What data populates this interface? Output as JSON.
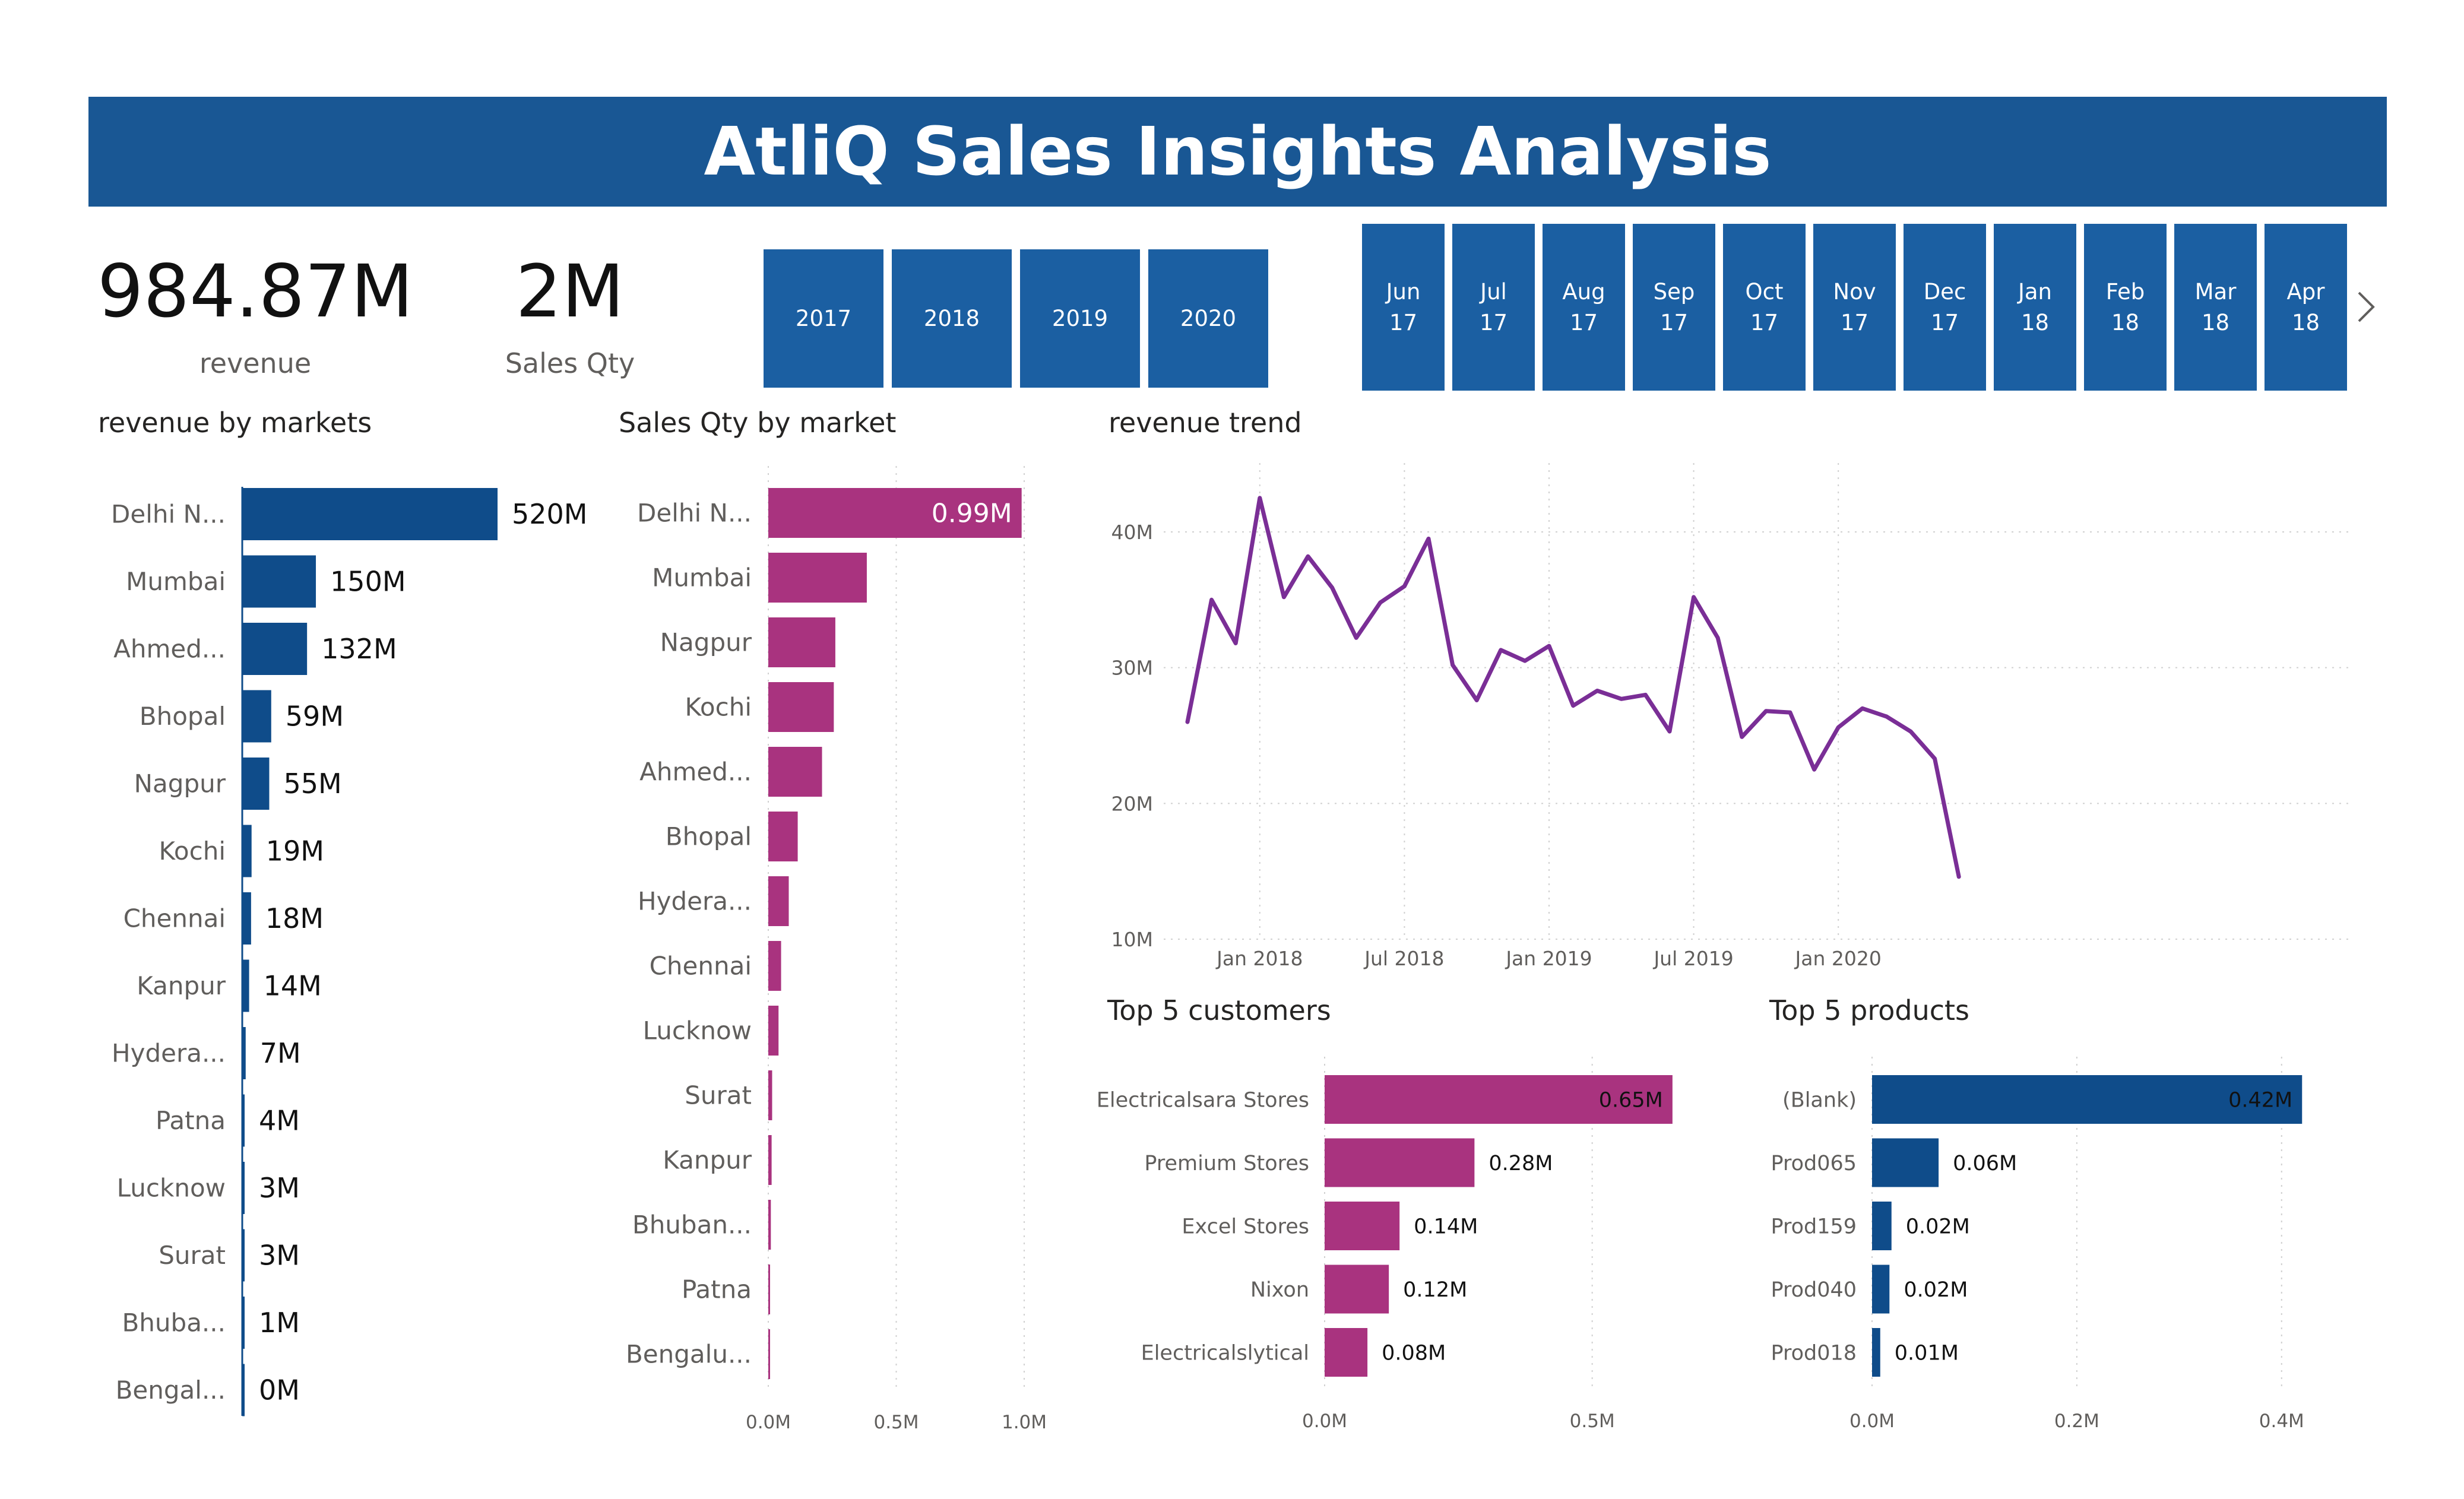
{
  "header": {
    "title": "AtliQ Sales Insights Analysis"
  },
  "kpis": [
    {
      "value": "984.87M",
      "label": "revenue"
    },
    {
      "value": "2M",
      "label": "Sales Qty"
    }
  ],
  "year_slicer": [
    "2017",
    "2018",
    "2019",
    "2020"
  ],
  "month_slicer": [
    "Jun\n17",
    "Jul\n17",
    "Aug\n17",
    "Sep\n17",
    "Oct\n17",
    "Nov\n17",
    "Dec\n17",
    "Jan\n18",
    "Feb\n18",
    "Mar\n18",
    "Apr\n18"
  ],
  "icons": {
    "next": "chevron-right-icon"
  },
  "colors": {
    "blue": "#0f4c8a",
    "slicer_blue": "#1b5fa2",
    "magenta": "#a9337f",
    "purple": "#7a2e96",
    "header": "#195794"
  },
  "chart_data": [
    {
      "id": "revenue_by_markets",
      "type": "bar",
      "orientation": "horizontal",
      "title": "revenue by markets",
      "categories": [
        "Delhi N...",
        "Mumbai",
        "Ahmed...",
        "Bhopal",
        "Nagpur",
        "Kochi",
        "Chennai",
        "Kanpur",
        "Hydera...",
        "Patna",
        "Lucknow",
        "Surat",
        "Bhuba...",
        "Bengal..."
      ],
      "values": [
        520,
        150,
        132,
        59,
        55,
        19,
        18,
        14,
        7,
        4,
        3,
        3,
        1,
        0
      ],
      "data_labels": [
        "520M",
        "150M",
        "132M",
        "59M",
        "55M",
        "19M",
        "18M",
        "14M",
        "7M",
        "4M",
        "3M",
        "3M",
        "1M",
        "0M"
      ],
      "unit": "M",
      "color": "#0f4c8a"
    },
    {
      "id": "sales_qty_by_market",
      "type": "bar",
      "orientation": "horizontal",
      "title": "Sales Qty by market",
      "categories": [
        "Delhi N...",
        "Mumbai",
        "Nagpur",
        "Kochi",
        "Ahmed...",
        "Bhopal",
        "Hydera...",
        "Chennai",
        "Lucknow",
        "Surat",
        "Kanpur",
        "Bhuban...",
        "Patna",
        "Bengalu..."
      ],
      "values": [
        0.99,
        0.385,
        0.262,
        0.256,
        0.21,
        0.115,
        0.08,
        0.05,
        0.04,
        0.015,
        0.013,
        0.01,
        0.005,
        0.002
      ],
      "data_labels": [
        "0.99M",
        "",
        "",
        "",
        "",
        "",
        "",
        "",
        "",
        "",
        "",
        "",
        "",
        ""
      ],
      "xlim": [
        0,
        1.0
      ],
      "xticks": [
        "0.0M",
        "0.5M",
        "1.0M"
      ],
      "xtick_values": [
        0,
        0.5,
        1.0
      ],
      "color": "#a9337f",
      "grid": true
    },
    {
      "id": "revenue_trend",
      "type": "line",
      "title": "revenue trend",
      "x_start": "2017-10",
      "y": [
        26,
        35,
        31.8,
        42.5,
        35.2,
        38.2,
        35.9,
        32.2,
        34.8,
        36,
        39.5,
        30.2,
        27.6,
        31.3,
        30.5,
        31.6,
        27.2,
        28.3,
        27.7,
        28,
        25.3,
        35.2,
        32.2,
        24.9,
        26.8,
        26.7,
        22.5,
        25.6,
        27,
        26.4,
        25.3,
        23.3,
        14.6
      ],
      "ylim": [
        10,
        42
      ],
      "yticks": [
        "10M",
        "20M",
        "30M",
        "40M"
      ],
      "ytick_values": [
        10,
        20,
        30,
        40
      ],
      "xticks": [
        "Jan 2018",
        "Jul 2018",
        "Jan 2019",
        "Jul 2019",
        "Jan 2020"
      ],
      "xtick_index": [
        3,
        9,
        15,
        21,
        27
      ],
      "color": "#7a2e96",
      "grid": true
    },
    {
      "id": "top5_customers",
      "type": "bar",
      "orientation": "horizontal",
      "title": "Top 5 customers",
      "categories": [
        "Electricalsara Stores",
        "Premium Stores",
        "Excel Stores",
        "Nixon",
        "Electricalslytical"
      ],
      "values": [
        0.65,
        0.28,
        0.14,
        0.12,
        0.08
      ],
      "data_labels": [
        "0.65M",
        "0.28M",
        "0.14M",
        "0.12M",
        "0.08M"
      ],
      "xlim": [
        0,
        0.75
      ],
      "xticks": [
        "0.0M",
        "0.5M"
      ],
      "xtick_values": [
        0,
        0.5
      ],
      "color": "#a9337f",
      "grid": true
    },
    {
      "id": "top5_products",
      "type": "bar",
      "orientation": "horizontal",
      "title": "Top 5 products",
      "categories": [
        "(Blank)",
        "Prod065",
        "Prod159",
        "Prod040",
        "Prod018"
      ],
      "values": [
        0.42,
        0.065,
        0.019,
        0.017,
        0.008
      ],
      "data_labels": [
        "0.42M",
        "0.06M",
        "0.02M",
        "0.02M",
        "0.01M"
      ],
      "xlim": [
        0,
        0.45
      ],
      "xticks": [
        "0.0M",
        "0.2M",
        "0.4M"
      ],
      "xtick_values": [
        0,
        0.2,
        0.4
      ],
      "color": "#0f4c8a",
      "grid": true
    }
  ]
}
